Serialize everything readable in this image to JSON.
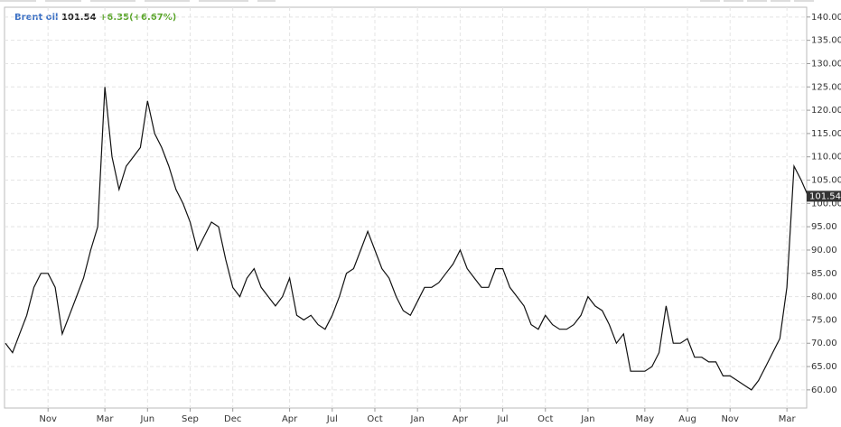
{
  "chart_data": {
    "type": "line",
    "change_label": "+6.35(+6.67%)",
    "categories": [
      null,
      null,
      null,
      null,
      null,
      null,
      "Nov",
      null,
      null,
      null,
      null,
      null,
      null,
      null,
      "Mar",
      null,
      null,
      null,
      null,
      null,
      "Jun",
      null,
      null,
      null,
      null,
      null,
      "Sep",
      null,
      null,
      null,
      null,
      null,
      "Dec",
      null,
      null,
      null,
      null,
      null,
      null,
      null,
      "Apr",
      null,
      null,
      null,
      null,
      null,
      "Jul",
      null,
      null,
      null,
      null,
      null,
      "Oct",
      null,
      null,
      null,
      null,
      null,
      "Jan",
      null,
      null,
      null,
      null,
      null,
      "Apr",
      null,
      null,
      null,
      null,
      null,
      "Jul",
      null,
      null,
      null,
      null,
      null,
      "Oct",
      null,
      null,
      null,
      null,
      null,
      "Jan",
      null,
      null,
      null,
      null,
      null,
      null,
      null,
      "May",
      null,
      null,
      null,
      null,
      null,
      "Aug",
      null,
      null,
      null,
      null,
      null,
      "Nov",
      null,
      null,
      null,
      null,
      null,
      null,
      null,
      "Mar",
      null,
      null,
      null
    ],
    "series": [
      {
        "name": "Brent oil",
        "color": "#111111",
        "values": [
          70,
          68,
          72,
          76,
          82,
          85,
          85,
          82,
          72,
          76,
          80,
          84,
          90,
          95,
          125,
          110,
          103,
          108,
          110,
          112,
          122,
          115,
          112,
          108,
          103,
          100,
          96,
          90,
          93,
          96,
          95,
          88,
          82,
          80,
          84,
          86,
          82,
          80,
          78,
          80,
          84,
          76,
          75,
          76,
          74,
          73,
          76,
          80,
          85,
          86,
          90,
          94,
          90,
          86,
          84,
          80,
          77,
          76,
          79,
          82,
          82,
          83,
          85,
          87,
          90,
          86,
          84,
          82,
          82,
          86,
          86,
          82,
          80,
          78,
          74,
          73,
          76,
          74,
          73,
          73,
          74,
          76,
          80,
          78,
          77,
          74,
          70,
          72,
          64,
          64,
          64,
          65,
          68,
          78,
          70,
          70,
          71,
          67,
          67,
          66,
          66,
          63,
          63,
          62,
          61,
          60,
          62,
          65,
          68,
          71,
          82,
          108,
          105,
          101.54
        ]
      }
    ],
    "ylim": [
      56.1,
      142.1
    ],
    "yticks": [
      {
        "value": 60,
        "label": "60.00"
      },
      {
        "value": 65,
        "label": "65.00"
      },
      {
        "value": 70,
        "label": "70.00"
      },
      {
        "value": 75,
        "label": "75.00"
      },
      {
        "value": 80,
        "label": "80.00"
      },
      {
        "value": 85,
        "label": "85.00"
      },
      {
        "value": 90,
        "label": "90.00"
      },
      {
        "value": 95,
        "label": "95.00"
      },
      {
        "value": 100,
        "label": "100.00"
      },
      {
        "value": 105,
        "label": "105.00"
      },
      {
        "value": 110,
        "label": "110.00"
      },
      {
        "value": 115,
        "label": "115.00"
      },
      {
        "value": 120,
        "label": "120.00"
      },
      {
        "value": 125,
        "label": "125.00"
      },
      {
        "value": 130,
        "label": "130.00"
      },
      {
        "value": 135,
        "label": "135.00"
      },
      {
        "value": 140,
        "label": "140.00"
      }
    ],
    "grid": true
  }
}
